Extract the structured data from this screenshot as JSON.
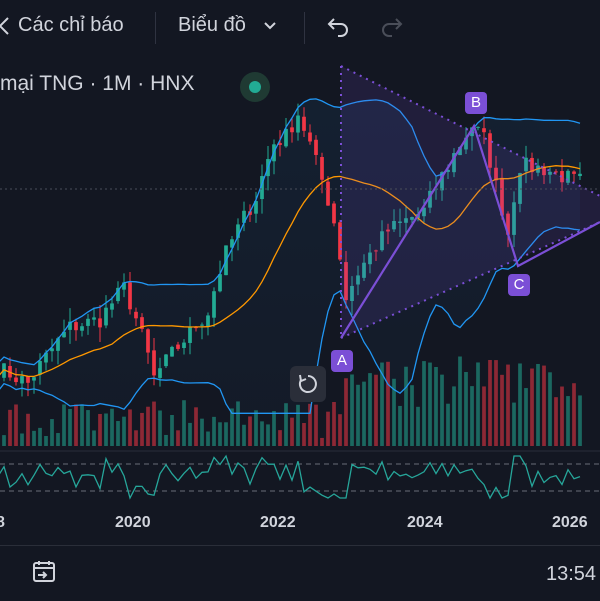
{
  "toolbar": {
    "indicators_label": "Các chỉ báo",
    "chart_type_label": "Biểu đồ",
    "undo_icon": "undo-icon",
    "redo_icon": "redo-icon"
  },
  "legend": {
    "symbol_text": "mại TNG · 1M · HNX",
    "status": "market-open"
  },
  "pattern_points": {
    "a": "A",
    "b": "B",
    "c": "C"
  },
  "x_axis": {
    "labels": [
      "8",
      "2020",
      "2022",
      "2024",
      "2026"
    ]
  },
  "footer": {
    "time": "13:54"
  },
  "colors": {
    "up": "#22ab94",
    "down": "#f23645",
    "bollinger": "#2196f3",
    "ma": "#ff9800",
    "pattern": "#7b4fd6",
    "rsi": "#26a69a"
  },
  "chart_data": {
    "type": "candlestick",
    "symbol": "TNG",
    "interval": "1M",
    "exchange": "HNX",
    "x_range": [
      "2018-01",
      "2026-02"
    ],
    "x_ticks": [
      "8",
      "2020",
      "2022",
      "2024",
      "2026"
    ],
    "price_close_path": [
      [
        "2018-01",
        3.5
      ],
      [
        "2018-06",
        3.2
      ],
      [
        "2019-01",
        4.4
      ],
      [
        "2019-06",
        4.6
      ],
      [
        "2019-10",
        5.5
      ],
      [
        "2020-03",
        3.3
      ],
      [
        "2020-08",
        4.1
      ],
      [
        "2020-12",
        4.8
      ],
      [
        "2021-03",
        6.7
      ],
      [
        "2021-08",
        9.2
      ],
      [
        "2021-11",
        12.5
      ],
      [
        "2022-01",
        13.0
      ],
      [
        "2022-03",
        14.8
      ],
      [
        "2022-06",
        11.2
      ],
      [
        "2022-09",
        8.0
      ],
      [
        "2022-11",
        5.2
      ],
      [
        "2023-01",
        6.0
      ],
      [
        "2023-06",
        7.6
      ],
      [
        "2023-12",
        8.5
      ],
      [
        "2024-04",
        11.0
      ],
      [
        "2024-08",
        13.8
      ],
      [
        "2024-10",
        12.8
      ],
      [
        "2024-12",
        9.8
      ],
      [
        "2025-02",
        7.5
      ],
      [
        "2025-04",
        11.0
      ],
      [
        "2025-08",
        10.8
      ],
      [
        "2026-01",
        10.1
      ]
    ],
    "series": [
      {
        "name": "Bollinger Upper"
      },
      {
        "name": "Bollinger Basis"
      },
      {
        "name": "Bollinger Lower"
      }
    ],
    "pattern": {
      "type": "triangle",
      "points": [
        "A",
        "B",
        "C"
      ]
    },
    "panes": [
      "price",
      "volume",
      "oscillator"
    ],
    "grid": false
  }
}
